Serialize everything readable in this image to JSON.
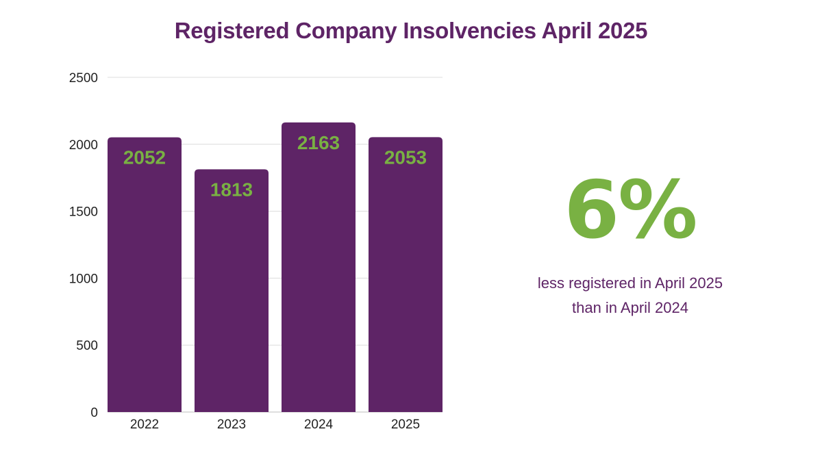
{
  "chart_data": {
    "type": "bar",
    "title": "Registered Company Insolvencies April 2025",
    "categories": [
      "2022",
      "2023",
      "2024",
      "2025"
    ],
    "values": [
      2052,
      1813,
      2163,
      2053
    ],
    "ylim": [
      0,
      2500
    ],
    "yticks": [
      0,
      500,
      1000,
      1500,
      2000,
      2500
    ],
    "xlabel": "",
    "ylabel": "",
    "grid": true,
    "bar_color": "#5e2466",
    "label_color": "#79b143"
  },
  "callout": {
    "value": "6%",
    "text": "less registered in April 2025 than in April 2024"
  }
}
